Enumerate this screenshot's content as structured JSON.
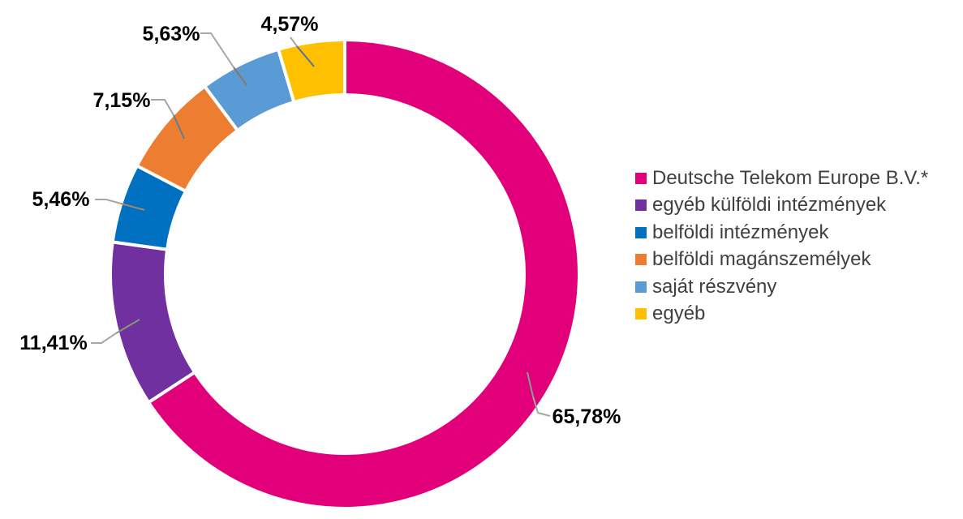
{
  "chart_data": {
    "type": "pie",
    "subtype": "donut",
    "unit": "%",
    "decimal_separator": ",",
    "start_angle_deg": 0,
    "direction": "clockwise",
    "legend_position": "right",
    "grid": false,
    "slices": [
      {
        "name": "Deutsche Telekom Europe B.V.*",
        "value": 65.78,
        "label": "65,78%",
        "color": "#E2007A"
      },
      {
        "name": "egyéb külföldi intézmények",
        "value": 11.41,
        "label": "11,41%",
        "color": "#7030A0"
      },
      {
        "name": "belföldi intézmények",
        "value": 5.46,
        "label": "5,46%",
        "color": "#0070C0"
      },
      {
        "name": "belföldi magánszemélyek",
        "value": 7.15,
        "label": "7,15%",
        "color": "#ED7D31"
      },
      {
        "name": "saját részvény",
        "value": 5.63,
        "label": "5,63%",
        "color": "#5B9BD5"
      },
      {
        "name": "egyéb",
        "value": 4.57,
        "label": "4,57%",
        "color": "#FFC000"
      }
    ]
  },
  "styles": {
    "background": "#FFFFFF",
    "label_text_color": "#000000",
    "legend_text_color": "#404040",
    "leader_line_color": "#A6A6A6",
    "slice_border_color": "#FFFFFF"
  }
}
